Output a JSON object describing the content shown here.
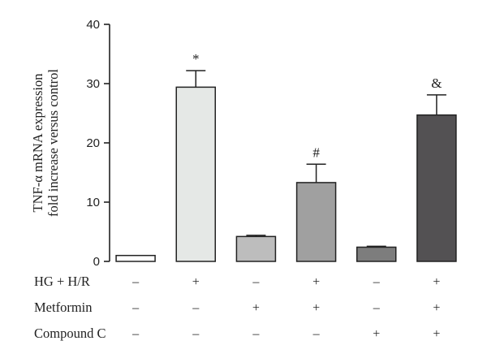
{
  "chart_data": {
    "type": "bar",
    "ylabel": "TNF-α mRNA expression",
    "ylabel_line2": "fold increase versus control",
    "ylim": [
      0,
      40
    ],
    "yticks": [
      0,
      10,
      20,
      30,
      40
    ],
    "grid": false,
    "legend": "none",
    "values": [
      1.0,
      29.4,
      4.2,
      13.3,
      2.4,
      24.7
    ],
    "errors": [
      0,
      2.8,
      0.2,
      3.1,
      0.15,
      3.4
    ],
    "annotations": [
      "",
      "*",
      "",
      "#",
      "",
      "&"
    ],
    "colors": [
      "#ffffff",
      "#e5e8e6",
      "#bdbdbd",
      "#a0a0a0",
      "#7d7d7d",
      "#535153"
    ],
    "conditions": [
      {
        "label": "HG + H/R",
        "signs": [
          "–",
          "+",
          "–",
          "+",
          "–",
          "+"
        ]
      },
      {
        "label": "Metformin",
        "signs": [
          "–",
          "–",
          "+",
          "+",
          "–",
          "+"
        ]
      },
      {
        "label": "Compound C",
        "signs": [
          "–",
          "–",
          "–",
          "–",
          "+",
          "+"
        ]
      }
    ]
  }
}
